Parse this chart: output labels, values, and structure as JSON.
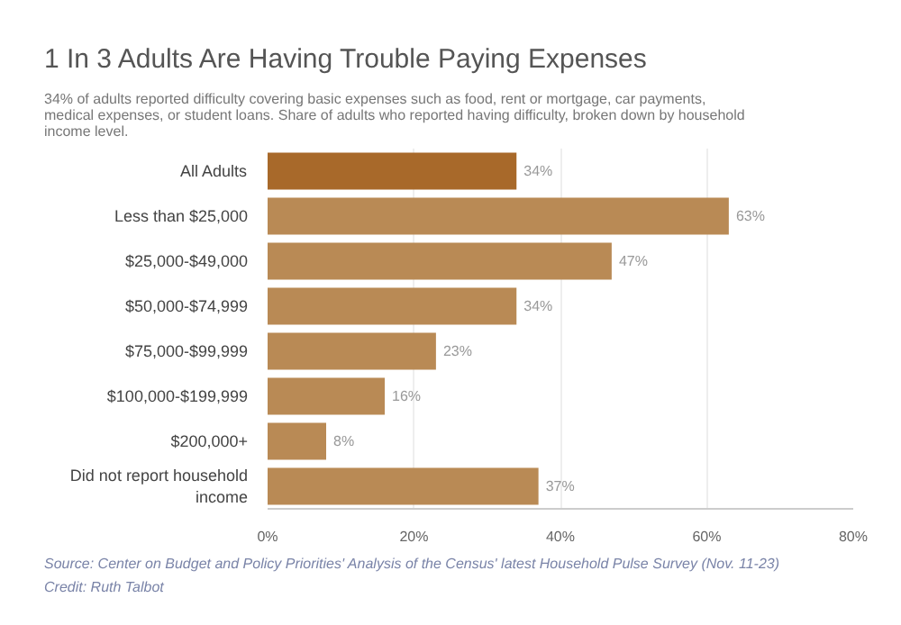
{
  "chart_data": {
    "type": "bar",
    "orientation": "horizontal",
    "title": "1 In 3 Adults Are Having Trouble Paying Expenses",
    "subtitle": "34% of adults reported difficulty covering basic expenses such as food, rent or mortgage, car payments, medical expenses, or student loans. Share of adults who reported having difficulty, broken down by household income level.",
    "categories": [
      "All Adults",
      "Less than $25,000",
      "$25,000-$49,000",
      "$50,000-$74,999",
      "$75,000-$99,999",
      "$100,000-$199,999",
      "$200,000+",
      "Did not report household income"
    ],
    "values": [
      34,
      63,
      47,
      34,
      23,
      16,
      8,
      37
    ],
    "colors": [
      "#a8692a",
      "#b98a55",
      "#b98a55",
      "#b98a55",
      "#b98a55",
      "#b98a55",
      "#b98a55",
      "#b98a55"
    ],
    "value_labels": [
      "34%",
      "63%",
      "47%",
      "34%",
      "23%",
      "16%",
      "8%",
      "37%"
    ],
    "xlim": [
      0,
      80
    ],
    "xticks": [
      {
        "value": 0,
        "label": "0%"
      },
      {
        "value": 20,
        "label": "20%"
      },
      {
        "value": 40,
        "label": "40%"
      },
      {
        "value": 60,
        "label": "60%"
      },
      {
        "value": 80,
        "label": "80%"
      }
    ],
    "grid": "x",
    "annotations": [
      "Source: Center on Budget and Policy Priorities' Analysis of the Census' latest Household Pulse Survey (Nov. 11-23)",
      "Credit: Ruth Talbot"
    ]
  }
}
